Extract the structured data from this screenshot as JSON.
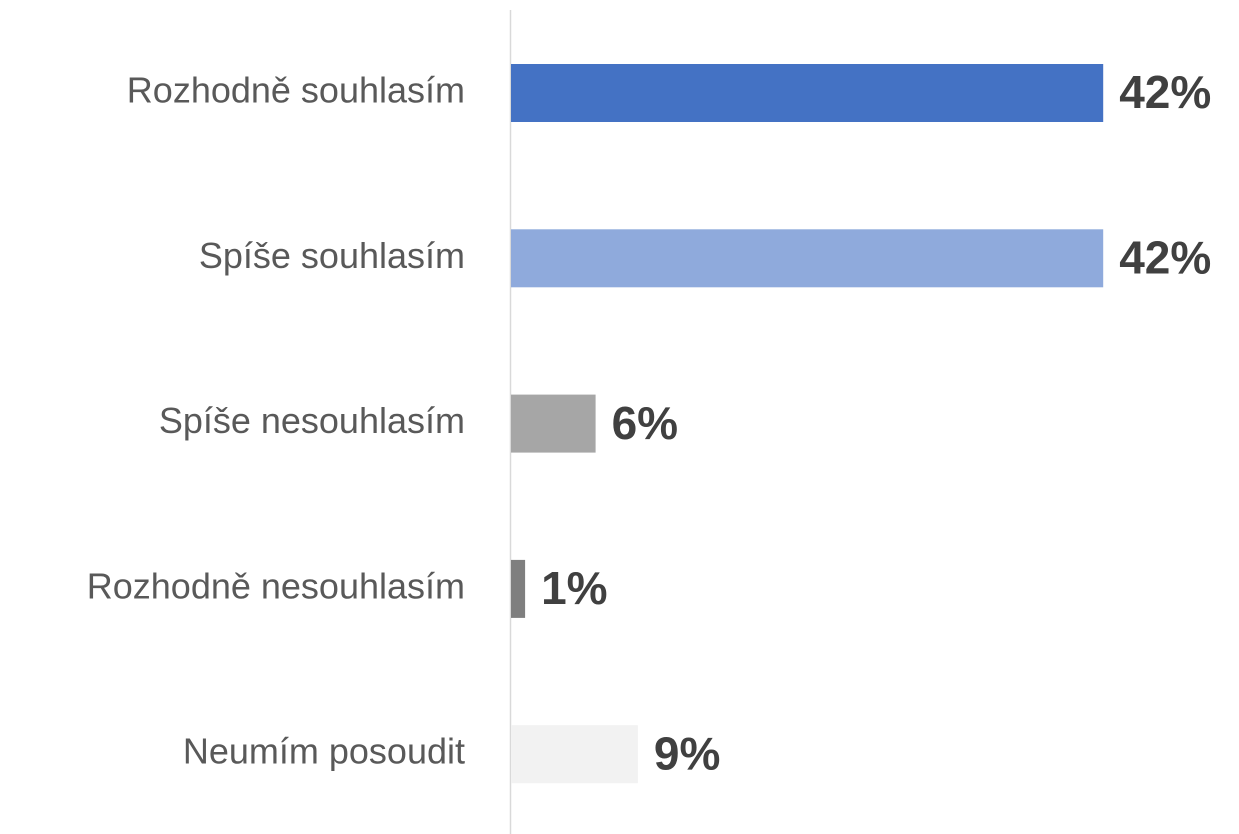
{
  "chart_data": {
    "type": "bar",
    "orientation": "horizontal",
    "categories": [
      "Rozhodně souhlasím",
      "Spíše souhlasím",
      "Spíše nesouhlasím",
      "Rozhodně nesouhlasím",
      "Neumím posoudit"
    ],
    "values": [
      42,
      42,
      6,
      1,
      9
    ],
    "value_labels": [
      "42%",
      "42%",
      "6%",
      "1%",
      "9%"
    ],
    "colors": [
      "#4472c4",
      "#8faadc",
      "#a6a6a6",
      "#7f7f7f",
      "#f2f2f2"
    ],
    "xlim": [
      0,
      50
    ]
  }
}
